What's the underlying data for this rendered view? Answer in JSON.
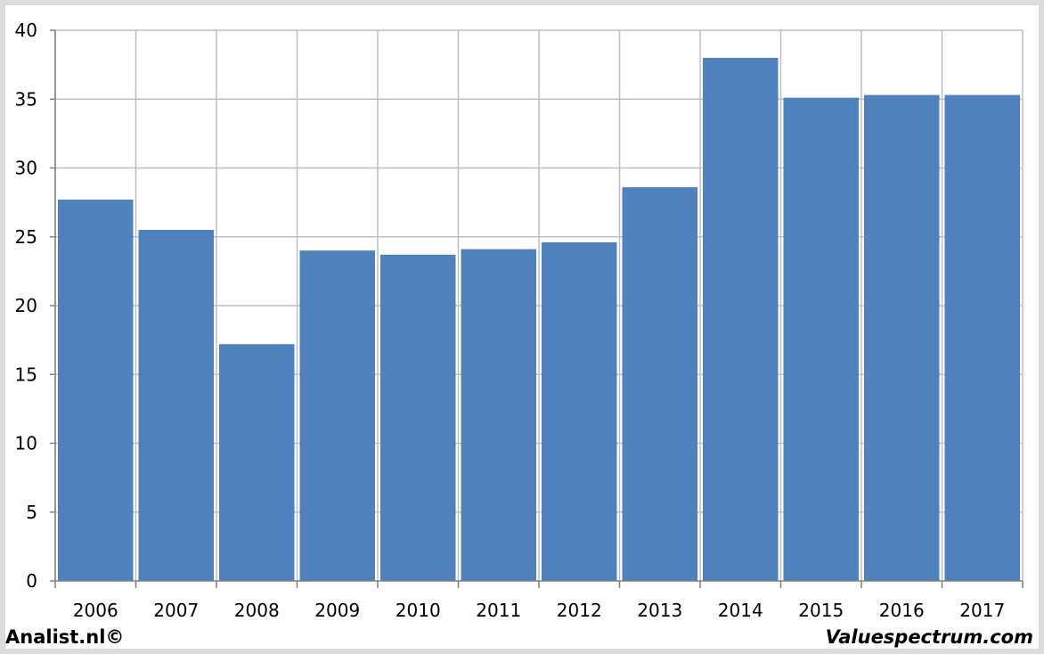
{
  "chart_data": {
    "type": "bar",
    "categories": [
      "2006",
      "2007",
      "2008",
      "2009",
      "2010",
      "2011",
      "2012",
      "2013",
      "2014",
      "2015",
      "2016",
      "2017"
    ],
    "values": [
      27.7,
      25.5,
      17.2,
      24.0,
      23.7,
      24.1,
      24.6,
      28.6,
      38.0,
      35.1,
      35.3,
      35.3
    ],
    "title": "",
    "xlabel": "",
    "ylabel": "",
    "ylim": [
      0,
      40
    ],
    "yticks": [
      "0",
      "5",
      "10",
      "15",
      "20",
      "25",
      "30",
      "35",
      "40"
    ],
    "grid": true,
    "legend": "none",
    "bar_color": "#4f81bd",
    "grid_color": "#bfbfbf"
  },
  "footer": {
    "left": "Analist.nl©",
    "right": "Valuespectrum.com"
  }
}
